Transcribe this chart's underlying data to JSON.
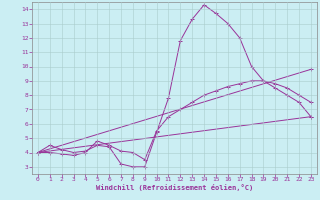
{
  "xlabel": "Windchill (Refroidissement éolien,°C)",
  "bg_color": "#cbeef3",
  "line_color": "#993399",
  "grid_color": "#aacccc",
  "xlim": [
    -0.5,
    23.5
  ],
  "ylim": [
    2.5,
    14.5
  ],
  "xticks": [
    0,
    1,
    2,
    3,
    4,
    5,
    6,
    7,
    8,
    9,
    10,
    11,
    12,
    13,
    14,
    15,
    16,
    17,
    18,
    19,
    20,
    21,
    22,
    23
  ],
  "yticks": [
    3,
    4,
    5,
    6,
    7,
    8,
    9,
    10,
    11,
    12,
    13,
    14
  ],
  "lines": [
    {
      "x": [
        0,
        1,
        2,
        3,
        4,
        5,
        6,
        7,
        8,
        9,
        10,
        11,
        12,
        13,
        14,
        15,
        16,
        17,
        18,
        19,
        20,
        21,
        22,
        23
      ],
      "y": [
        4.0,
        4.5,
        4.2,
        4.0,
        4.1,
        4.5,
        4.4,
        3.2,
        3.0,
        3.0,
        5.4,
        7.8,
        11.8,
        13.3,
        14.3,
        13.7,
        13.0,
        12.0,
        10.0,
        9.0,
        8.5,
        8.0,
        7.5,
        6.5
      ]
    },
    {
      "x": [
        0,
        1,
        2,
        3,
        4,
        5,
        6,
        7,
        8,
        9,
        10,
        11,
        12,
        13,
        14,
        15,
        16,
        17,
        18,
        19,
        20,
        21,
        22,
        23
      ],
      "y": [
        4.0,
        4.0,
        3.9,
        3.8,
        4.0,
        4.8,
        4.5,
        4.1,
        4.0,
        3.5,
        5.5,
        6.5,
        7.0,
        7.5,
        8.0,
        8.3,
        8.6,
        8.8,
        9.0,
        9.0,
        8.8,
        8.5,
        8.0,
        7.5
      ]
    },
    {
      "x": [
        0,
        23
      ],
      "y": [
        4.0,
        9.8
      ]
    },
    {
      "x": [
        0,
        23
      ],
      "y": [
        4.0,
        6.5
      ]
    }
  ]
}
